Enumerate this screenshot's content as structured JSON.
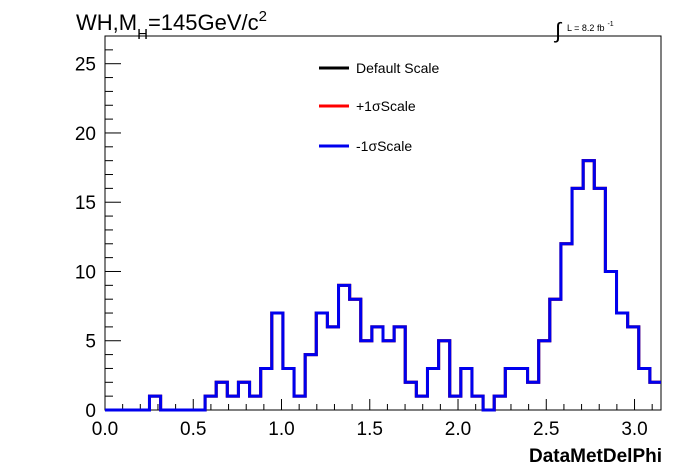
{
  "chart_data": {
    "type": "line",
    "step": true,
    "title": "WH,M_H=145GeV/c^2",
    "title_parts": {
      "main": "WH,M",
      "sub": "H",
      "rest": "=145GeV/c",
      "sup": "2"
    },
    "luminosity_label": {
      "integral_symbol": "∫",
      "text": "L = 8.2 fb",
      "sup": "-1"
    },
    "xlabel": "DataMetDelPhi",
    "ylabel": "",
    "xlim": [
      0,
      3.15
    ],
    "ylim": [
      0,
      27
    ],
    "x_ticks": [
      "0.0",
      "0.5",
      "1.0",
      "1.5",
      "2.0",
      "2.5",
      "3.0"
    ],
    "x_tick_values": [
      0,
      0.5,
      1.0,
      1.5,
      2.0,
      2.5,
      3.0
    ],
    "y_ticks": [
      "0",
      "5",
      "10",
      "15",
      "20",
      "25"
    ],
    "y_tick_values": [
      0,
      5,
      10,
      15,
      20,
      25
    ],
    "grid": false,
    "legend_position": "top-center",
    "bin_edges": [
      0,
      0.063,
      0.126,
      0.189,
      0.252,
      0.315,
      0.378,
      0.441,
      0.504,
      0.567,
      0.63,
      0.693,
      0.756,
      0.819,
      0.882,
      0.945,
      1.008,
      1.071,
      1.134,
      1.197,
      1.26,
      1.323,
      1.386,
      1.449,
      1.512,
      1.575,
      1.638,
      1.701,
      1.764,
      1.827,
      1.89,
      1.953,
      2.016,
      2.079,
      2.142,
      2.205,
      2.268,
      2.331,
      2.394,
      2.457,
      2.52,
      2.583,
      2.646,
      2.709,
      2.772,
      2.835,
      2.898,
      2.961,
      3.024,
      3.087,
      3.15
    ],
    "series": [
      {
        "name": "Default Scale",
        "color": "#000000",
        "values": [
          0,
          0,
          0,
          0,
          1,
          0,
          0,
          0,
          0,
          1,
          2,
          1,
          2,
          1,
          3,
          7,
          3,
          1,
          4,
          7,
          6,
          9,
          8,
          5,
          6,
          5,
          6,
          2,
          1,
          3,
          5,
          1,
          3,
          1,
          0,
          1,
          3,
          3,
          2,
          5,
          8,
          12,
          16,
          18,
          16,
          10,
          7,
          6,
          3,
          2
        ]
      },
      {
        "name": "+1σScale",
        "color": "#ff0000",
        "values": [
          0,
          0,
          0,
          0,
          1,
          0,
          0,
          0,
          0,
          1,
          2,
          1,
          2,
          1,
          3,
          7,
          3,
          1,
          4,
          7,
          6,
          9,
          8,
          5,
          6,
          5,
          6,
          2,
          1,
          3,
          5,
          1,
          3,
          1,
          0,
          1,
          3,
          3,
          2,
          5,
          8,
          12,
          16,
          18,
          16,
          10,
          7,
          6,
          3,
          2
        ]
      },
      {
        "name": "-1σScale",
        "color": "#0000ee",
        "values": [
          0,
          0,
          0,
          0,
          1,
          0,
          0,
          0,
          0,
          1,
          2,
          1,
          2,
          1,
          3,
          7,
          3,
          1,
          4,
          7,
          6,
          9,
          8,
          5,
          6,
          5,
          6,
          2,
          1,
          3,
          5,
          1,
          3,
          1,
          0,
          1,
          3,
          3,
          2,
          5,
          8,
          12,
          16,
          18,
          16,
          10,
          7,
          6,
          3,
          2
        ]
      }
    ]
  }
}
